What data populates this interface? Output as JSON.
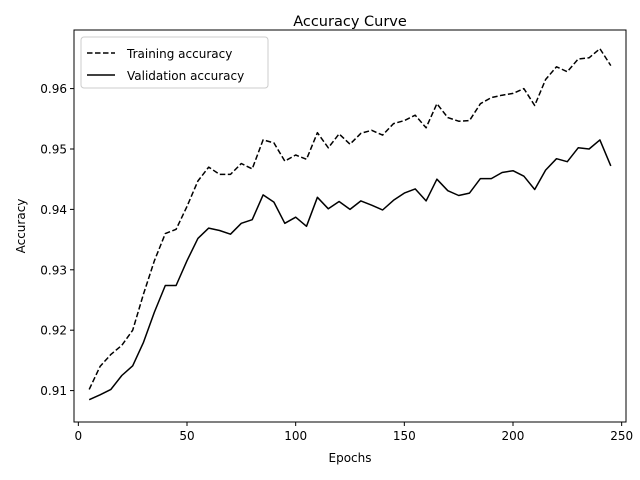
{
  "chart_data": {
    "type": "line",
    "title": "Accuracy Curve",
    "xlabel": "Epochs",
    "ylabel": "Accuracy",
    "xlim": [
      -2,
      252
    ],
    "ylim": [
      0.9048,
      0.9697
    ],
    "xticks": [
      0,
      50,
      100,
      150,
      200,
      250
    ],
    "yticks": [
      0.91,
      0.92,
      0.93,
      0.94,
      0.95,
      0.96
    ],
    "grid": false,
    "legend_position": "top-left",
    "series": [
      {
        "name": "Training accuracy",
        "style": "dashed",
        "color": "#000000",
        "x": [
          5,
          10,
          15,
          20,
          25,
          30,
          35,
          40,
          45,
          50,
          55,
          60,
          65,
          70,
          75,
          80,
          85,
          90,
          95,
          100,
          105,
          110,
          115,
          120,
          125,
          130,
          135,
          140,
          145,
          150,
          155,
          160,
          165,
          170,
          175,
          180,
          185,
          190,
          195,
          200,
          205,
          210,
          215,
          220,
          225,
          230,
          235,
          240,
          245
        ],
        "values": [
          0.9102,
          0.914,
          0.916,
          0.9175,
          0.92,
          0.926,
          0.9315,
          0.936,
          0.9367,
          0.9405,
          0.9447,
          0.947,
          0.9458,
          0.9458,
          0.9476,
          0.9467,
          0.9515,
          0.951,
          0.948,
          0.949,
          0.9483,
          0.9527,
          0.9502,
          0.9525,
          0.9508,
          0.9526,
          0.9531,
          0.9523,
          0.9542,
          0.9547,
          0.9556,
          0.9535,
          0.9575,
          0.9552,
          0.9546,
          0.9547,
          0.9575,
          0.9585,
          0.9589,
          0.9592,
          0.96,
          0.9572,
          0.9615,
          0.9636,
          0.9628,
          0.9649,
          0.9651,
          0.9666,
          0.9638
        ]
      },
      {
        "name": "Validation accuracy",
        "style": "solid",
        "color": "#000000",
        "x": [
          5,
          10,
          15,
          20,
          25,
          30,
          35,
          40,
          45,
          50,
          55,
          60,
          65,
          70,
          75,
          80,
          85,
          90,
          95,
          100,
          105,
          110,
          115,
          120,
          125,
          130,
          135,
          140,
          145,
          150,
          155,
          160,
          165,
          170,
          175,
          180,
          185,
          190,
          195,
          200,
          205,
          210,
          215,
          220,
          225,
          230,
          235,
          240,
          245
        ],
        "values": [
          0.9085,
          0.9093,
          0.9102,
          0.9125,
          0.9141,
          0.918,
          0.923,
          0.9274,
          0.9274,
          0.9315,
          0.9352,
          0.9369,
          0.9365,
          0.9359,
          0.9377,
          0.9383,
          0.9424,
          0.9412,
          0.9377,
          0.9387,
          0.9372,
          0.942,
          0.9401,
          0.9413,
          0.94,
          0.9414,
          0.9407,
          0.9399,
          0.9415,
          0.9427,
          0.9434,
          0.9414,
          0.945,
          0.9431,
          0.9423,
          0.9427,
          0.9451,
          0.9451,
          0.9461,
          0.9464,
          0.9455,
          0.9433,
          0.9465,
          0.9484,
          0.9479,
          0.9502,
          0.95,
          0.9515,
          0.9472
        ]
      }
    ]
  }
}
